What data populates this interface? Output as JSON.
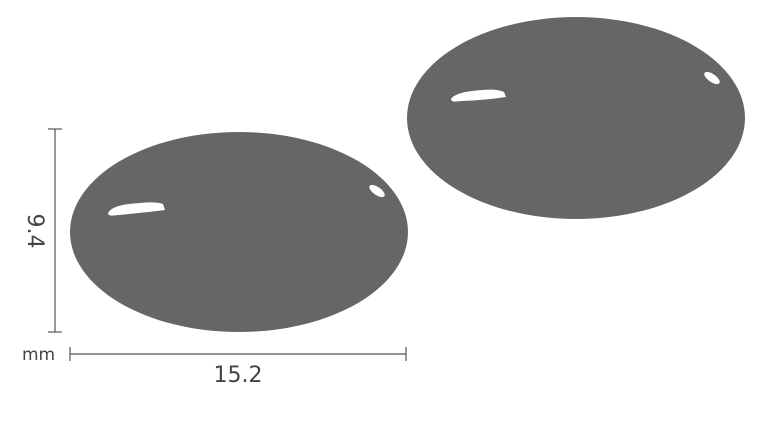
{
  "dimensions": {
    "width_value": "15.2",
    "height_value": "9.4",
    "unit": "mm"
  },
  "colors": {
    "tablet_fill": "#666666",
    "highlight": "#ffffff",
    "dimension_line": "#555555",
    "dimension_text": "#444444"
  },
  "tablets": [
    {
      "shape": "oval",
      "view": "front"
    },
    {
      "shape": "oval",
      "view": "back"
    }
  ]
}
